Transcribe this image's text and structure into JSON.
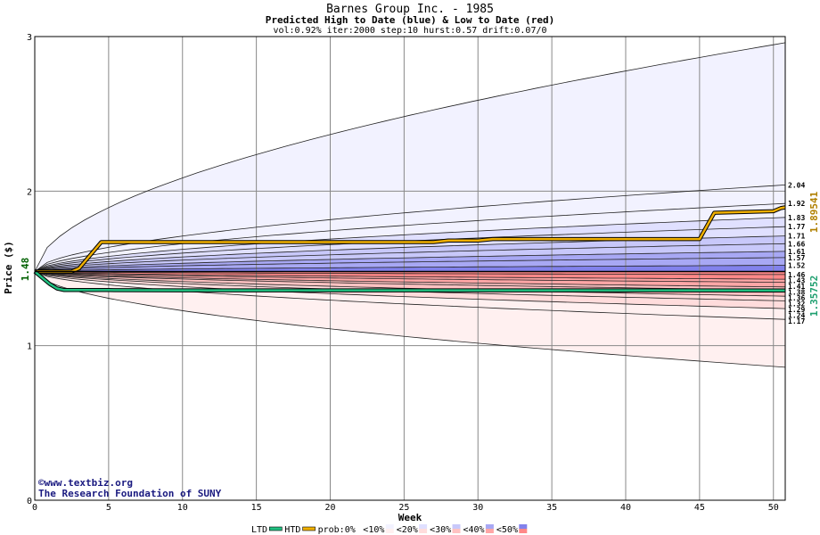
{
  "chart_data": {
    "type": "area",
    "title": "Barnes Group Inc. - 1985",
    "subtitle": "Predicted High to Date (blue) &  Low to Date (red)",
    "params": "vol:0.92% iter:2000 step:10 hurst:0.57 drift:0.07/0",
    "xlabel": "Week",
    "ylabel": "Price ($)",
    "xlim": [
      0,
      50.8
    ],
    "ylim": [
      0,
      3
    ],
    "x_ticks": [
      0,
      5,
      10,
      15,
      20,
      25,
      30,
      35,
      40,
      45,
      50
    ],
    "x_tick_labels": [
      "0",
      "5",
      "10",
      "15",
      "20",
      "25",
      "30",
      "35",
      "40",
      "45",
      "50"
    ],
    "y_ticks": [
      0,
      1,
      2,
      3
    ],
    "y_tick_labels": [
      "0",
      "1",
      "2",
      "3"
    ],
    "grid": true,
    "start_price": 1.48,
    "start_price_label": "1.48",
    "current_high_label": "1.89541",
    "current_low_label": "1.35752",
    "band_colors": [
      "#f2f2ff",
      "#e0e0ff",
      "#c8c8fa",
      "#a8a8f4",
      "#8282ec",
      "#fff0f0",
      "#ffdcdc",
      "#ffc2c2",
      "#ffa6a6",
      "#ff8888"
    ],
    "upper_band_levels": [
      {
        "label": "2.04",
        "end": 2.04,
        "inner": true
      },
      {
        "label": "1.92",
        "end": 1.92,
        "inner": true
      },
      {
        "label": "1.83",
        "end": 1.83,
        "inner": true
      },
      {
        "label": "1.77",
        "end": 1.77,
        "inner": true
      },
      {
        "label": "1.71",
        "end": 1.71,
        "inner": true
      },
      {
        "label": "1.66",
        "end": 1.66,
        "inner": true
      },
      {
        "label": "1.61",
        "end": 1.61,
        "inner": true
      },
      {
        "label": "1.57",
        "end": 1.57,
        "inner": true
      },
      {
        "label": "1.52",
        "end": 1.52,
        "inner": true
      },
      {
        "label": "1.46",
        "end": 1.46,
        "inner": true
      },
      {
        "label": "",
        "end": 2.96,
        "inner": false
      }
    ],
    "lower_band_levels": [
      {
        "label": "1.43",
        "end": 1.43
      },
      {
        "label": "1.41",
        "end": 1.41
      },
      {
        "label": "1.38",
        "end": 1.38
      },
      {
        "label": "1.36",
        "end": 1.36
      },
      {
        "label": "1.32",
        "end": 1.32
      },
      {
        "label": "1.29",
        "end": 1.29
      },
      {
        "label": "1.24",
        "end": 1.24
      },
      {
        "label": "1.17",
        "end": 1.17
      },
      {
        "label": "",
        "end": 0.86
      }
    ],
    "series": [
      {
        "name": "HTD",
        "color": "#f0b000",
        "x": [
          0,
          2.5,
          3,
          4.5,
          5,
          27,
          28,
          30,
          31,
          45,
          46,
          50,
          50.5,
          50.8
        ],
        "y": [
          1.48,
          1.48,
          1.5,
          1.67,
          1.67,
          1.67,
          1.68,
          1.68,
          1.69,
          1.69,
          1.86,
          1.87,
          1.89,
          1.89541
        ]
      },
      {
        "name": "LTD",
        "color": "#20c080",
        "x": [
          0,
          0.5,
          1,
          1.5,
          2,
          5,
          10,
          20,
          30,
          40,
          50,
          50.8
        ],
        "y": [
          1.48,
          1.44,
          1.4,
          1.37,
          1.36,
          1.36,
          1.358,
          1.358,
          1.358,
          1.358,
          1.3575,
          1.35752
        ]
      }
    ],
    "watermark": [
      "©www.textbiz.org",
      "The Research Foundation of SUNY"
    ],
    "legend": {
      "placement": "bottom",
      "items": [
        {
          "label": "LTD",
          "color": "#20c080",
          "kind": "line"
        },
        {
          "label": "HTD",
          "color": "#f0b000",
          "kind": "line"
        },
        {
          "label": "prob:0%",
          "color": "",
          "kind": "text"
        },
        {
          "label": "<10%",
          "color": "#f2f2ff",
          "color2": "#fff0f0",
          "kind": "swatch"
        },
        {
          "label": "<20%",
          "color": "#e0e0ff",
          "color2": "#ffdcdc",
          "kind": "swatch"
        },
        {
          "label": "<30%",
          "color": "#c8c8fa",
          "color2": "#ffc2c2",
          "kind": "swatch"
        },
        {
          "label": "<40%",
          "color": "#a8a8f4",
          "color2": "#ffa6a6",
          "kind": "swatch"
        },
        {
          "label": "<50%",
          "color": "#8282ec",
          "color2": "#ff8888",
          "kind": "swatch"
        }
      ]
    }
  }
}
